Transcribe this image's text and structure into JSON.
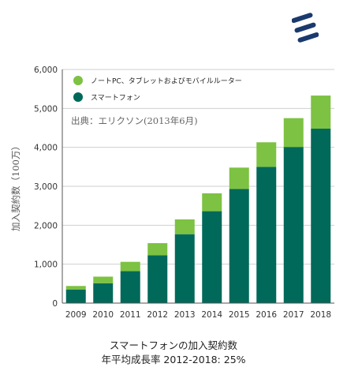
{
  "caption": {
    "line1": "スマートフォンの加入契約数",
    "line2": "年平均成長率 2012-2018: 25%"
  },
  "logo": {
    "icon": "ericsson-logo-icon",
    "color": "#1a3a6e"
  },
  "chart_data": {
    "type": "bar",
    "stacked": true,
    "categories": [
      "2009",
      "2010",
      "2011",
      "2012",
      "2013",
      "2014",
      "2015",
      "2016",
      "2017",
      "2018"
    ],
    "series": [
      {
        "name": "スマートフォン",
        "color": "#00695a",
        "values": [
          350,
          510,
          820,
          1230,
          1770,
          2360,
          2930,
          3500,
          4010,
          4480
        ]
      },
      {
        "name": "ノートPC、タブレットおよびモバイルルーター",
        "color": "#7dc242",
        "values": [
          90,
          170,
          240,
          310,
          380,
          460,
          550,
          630,
          740,
          850
        ]
      }
    ],
    "ylabel": "加入契約数（100万）",
    "ylim": [
      0,
      6000
    ],
    "yticks": [
      "0",
      "1,000",
      "2,000",
      "3,000",
      "4,000",
      "5,000",
      "6,000"
    ],
    "ytick_values": [
      0,
      1000,
      2000,
      3000,
      4000,
      5000,
      6000
    ],
    "grid": true,
    "legend": "top-left",
    "annotation": "出典：エリクソン(2013年6月)"
  }
}
